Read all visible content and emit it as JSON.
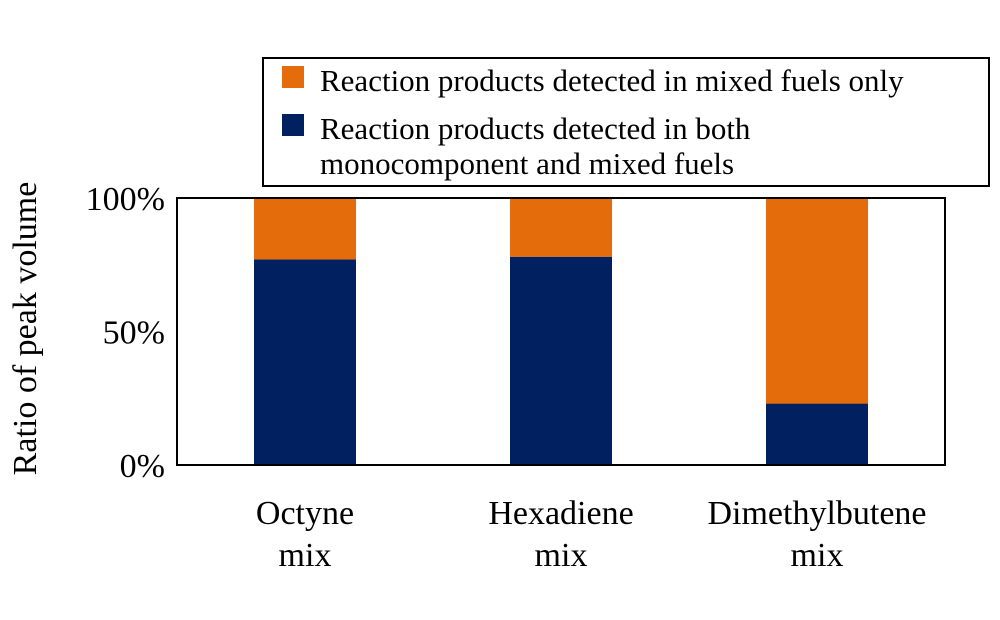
{
  "chart_data": {
    "type": "bar",
    "stacked": true,
    "normalized_percent": true,
    "categories": [
      [
        "Octyne",
        "mix"
      ],
      [
        "Hexadiene",
        "mix"
      ],
      [
        "Dimethylbutene",
        "mix"
      ]
    ],
    "series": [
      {
        "name_lines": [
          "Reaction products detected in both",
          "monocomponent and mixed fuels"
        ],
        "values": [
          77,
          78,
          23
        ],
        "color": "#002060"
      },
      {
        "name_lines": [
          "Reaction products detected in mixed fuels only"
        ],
        "values": [
          23,
          22,
          77
        ],
        "color": "#E46C0A"
      }
    ],
    "legend_order": [
      1,
      0
    ],
    "ylabel": "Ratio of peak volume",
    "ylim": [
      0,
      100
    ],
    "yticks": [
      0,
      50,
      100
    ],
    "ytick_labels": [
      "0%",
      "50%",
      "100%"
    ],
    "grid": false,
    "legend_position": "top-right"
  }
}
